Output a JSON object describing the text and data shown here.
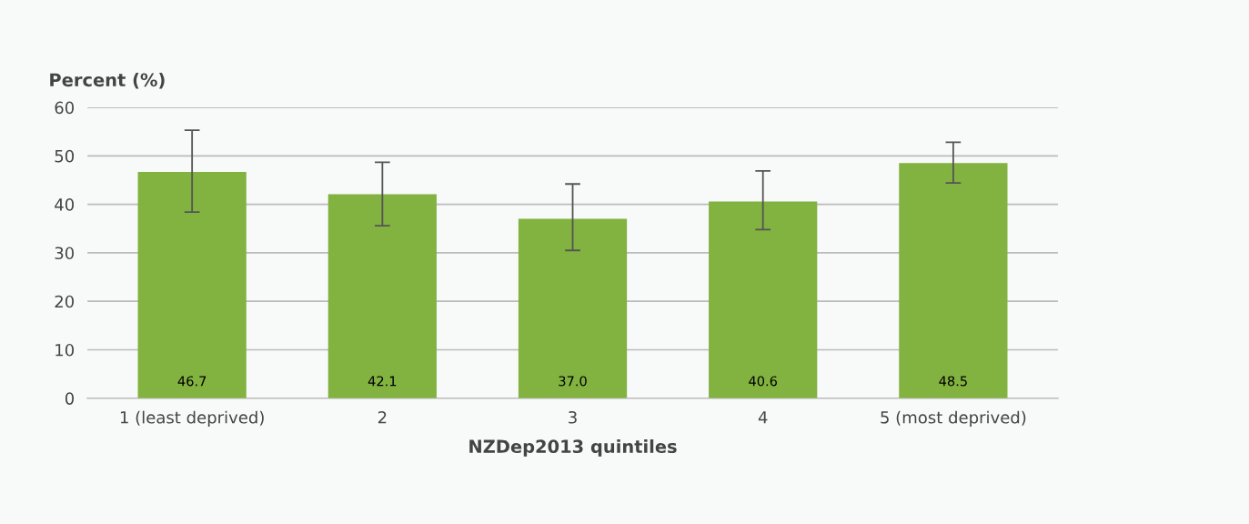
{
  "chart_data": {
    "type": "bar",
    "ylabel": "Percent (%)",
    "xlabel": "NZDep2013 quintiles",
    "categories": [
      "1 (least deprived)",
      "2",
      "3",
      "4",
      "5 (most deprived)"
    ],
    "values": [
      46.7,
      42.1,
      37.0,
      40.6,
      48.5
    ],
    "errors": [
      [
        38.4,
        55.3
      ],
      [
        35.6,
        48.7
      ],
      [
        30.5,
        44.2
      ],
      [
        34.8,
        46.9
      ],
      [
        44.4,
        52.8
      ]
    ],
    "color": "#82b240",
    "value_labels": [
      "46.7",
      "42.1",
      "37.0",
      "40.6",
      "48.5"
    ],
    "ylim": [
      0,
      60
    ],
    "yticks": [
      0,
      10,
      20,
      30,
      40,
      50,
      60
    ],
    "grid": "y",
    "legend": false
  }
}
